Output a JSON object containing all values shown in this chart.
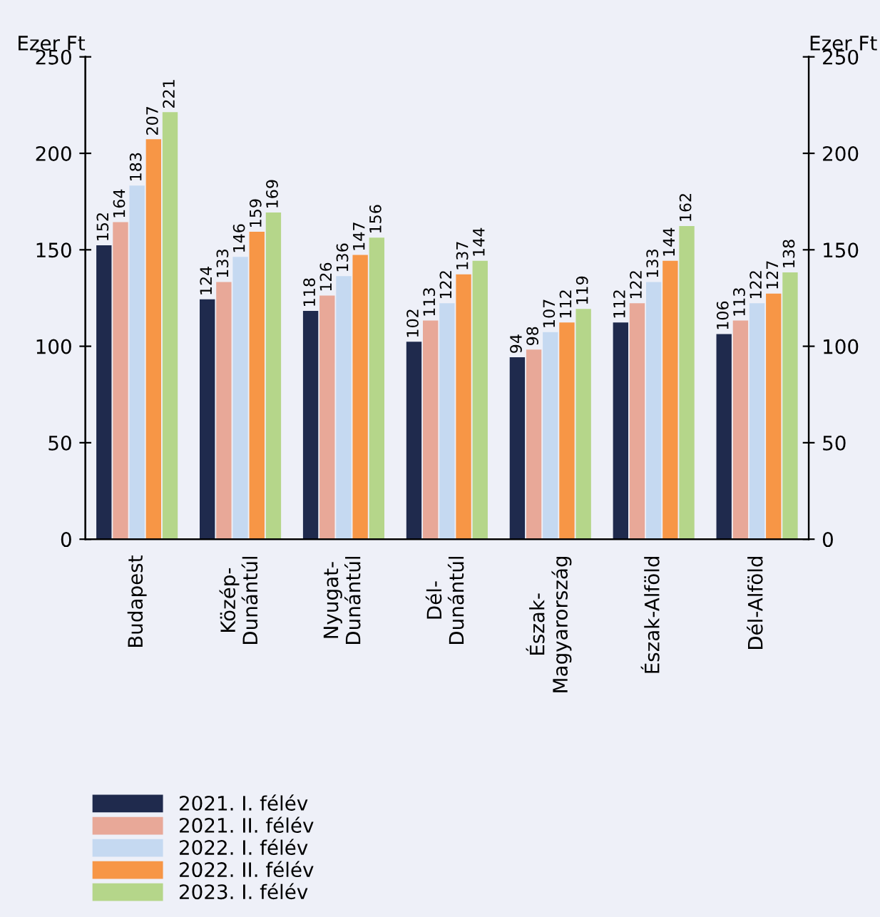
{
  "chart_data": {
    "type": "bar",
    "categories": [
      "Budapest",
      "Közép-\nDunántúl",
      "Nyugat-\nDunántúl",
      "Dél-\nDunántúl",
      "Észak-\nMagyarország",
      "Észak-Alföld",
      "Dél-Alföld"
    ],
    "series": [
      {
        "name": "2021. I. félév",
        "color": "#1f2a4d",
        "values": [
          152,
          124,
          118,
          102,
          94,
          112,
          106
        ]
      },
      {
        "name": "2021. II. félév",
        "color": "#e8a898",
        "values": [
          164,
          133,
          126,
          113,
          98,
          122,
          113
        ]
      },
      {
        "name": "2022. I. félév",
        "color": "#c5d9f1",
        "values": [
          183,
          146,
          136,
          122,
          107,
          133,
          122
        ]
      },
      {
        "name": "2022. II. félév",
        "color": "#f79646",
        "values": [
          207,
          159,
          147,
          137,
          112,
          144,
          127
        ]
      },
      {
        "name": "2023. I. félév",
        "color": "#b5d68a",
        "values": [
          221,
          169,
          156,
          144,
          119,
          162,
          138
        ]
      }
    ],
    "ylabel": "Ezer Ft",
    "y2label": "Ezer Ft",
    "ylim": [
      0,
      250
    ],
    "yticks": [
      0,
      50,
      100,
      150,
      200,
      250
    ],
    "y2lim": [
      0,
      250
    ],
    "y2ticks": [
      0,
      50,
      100,
      150,
      200,
      250
    ],
    "data_labels": true,
    "grid": false,
    "legend": "bottom left"
  }
}
